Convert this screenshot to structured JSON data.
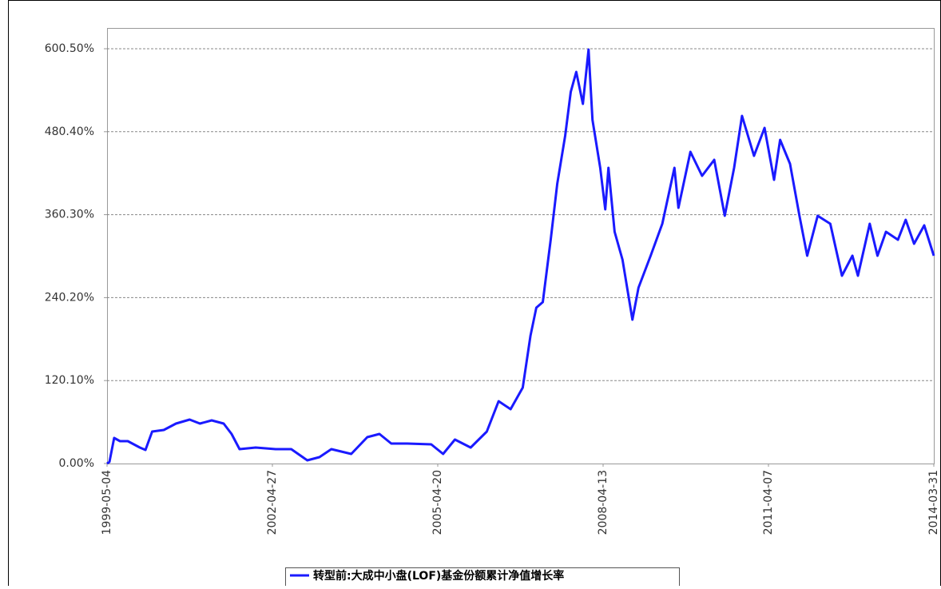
{
  "chart_data": {
    "type": "line",
    "x": [
      "1999-05-04",
      "1999-05-20",
      "1999-06-20",
      "1999-07-28",
      "1999-09-18",
      "1999-12-06",
      "2000-01-12",
      "2000-02-25",
      "2000-05-12",
      "2000-07-31",
      "2000-10-29",
      "2001-01-05",
      "2001-03-23",
      "2001-06-10",
      "2001-08-01",
      "2001-09-23",
      "2002-01-07",
      "2002-05-18",
      "2002-08-29",
      "2002-12-13",
      "2003-03-03",
      "2003-05-20",
      "2003-09-28",
      "2004-01-12",
      "2004-04-01",
      "2004-06-18",
      "2004-10-01",
      "2005-03-08",
      "2005-05-25",
      "2005-08-11",
      "2005-11-23",
      "2006-03-09",
      "2006-05-26",
      "2006-08-13",
      "2006-11-01",
      "2006-12-22",
      "2007-01-29",
      "2007-03-13",
      "2007-05-04",
      "2007-06-16",
      "2007-08-07",
      "2007-09-13",
      "2007-10-19",
      "2007-12-02",
      "2008-01-08",
      "2008-02-03",
      "2008-03-25",
      "2008-04-27",
      "2008-05-18",
      "2008-06-28",
      "2008-08-19",
      "2008-10-23",
      "2008-12-02",
      "2009-02-20",
      "2009-05-08",
      "2009-07-27",
      "2009-08-22",
      "2009-11-09",
      "2010-01-25",
      "2010-04-15",
      "2010-06-23",
      "2010-08-24",
      "2010-10-15",
      "2011-01-02",
      "2011-03-12",
      "2011-05-14",
      "2011-06-23",
      "2011-08-27",
      "2011-10-28",
      "2011-12-18",
      "2012-02-25",
      "2012-05-18",
      "2012-08-03",
      "2012-10-11",
      "2012-11-16",
      "2013-02-02",
      "2013-03-25",
      "2013-05-20",
      "2013-08-07",
      "2013-09-27",
      "2013-11-21",
      "2014-01-27",
      "2014-03-31"
    ],
    "series": [
      {
        "name": "转型前:大成中小盘(LOF)基金份额累计净值增长率",
        "color": "#1a1aff",
        "values": [
          0,
          2.3,
          37,
          32.4,
          32.4,
          23.1,
          19.7,
          46.3,
          48.6,
          57.9,
          63.6,
          57.9,
          62.5,
          57.9,
          42.8,
          20.8,
          23.1,
          20.8,
          20.8,
          4.6,
          9.3,
          20.8,
          13.9,
          38.2,
          42.8,
          28.9,
          28.9,
          27.8,
          13.9,
          34.7,
          23.1,
          46.3,
          90.2,
          78.7,
          109.9,
          185.1,
          225.6,
          233.7,
          324,
          405,
          474.4,
          538,
          566.9,
          520.7,
          599.3,
          497.5,
          428.1,
          367.9,
          428.1,
          335.5,
          295,
          208.3,
          254.5,
          300.8,
          347.1,
          428.1,
          370.2,
          451.2,
          416.5,
          439.7,
          358.7,
          428.1,
          503.3,
          445.5,
          485.9,
          410.7,
          468.6,
          433.9,
          358.7,
          300.8,
          358.7,
          347.1,
          271.9,
          300.8,
          271.9,
          347.1,
          300.8,
          335.5,
          324,
          352.9,
          318.2,
          344.8,
          300.8
        ]
      }
    ],
    "xlim": [
      "1999-05-04",
      "2014-03-31"
    ],
    "xticks": [
      "1999-05-04",
      "2002-04-27",
      "2005-04-20",
      "2008-04-13",
      "2011-04-07",
      "2014-03-31"
    ],
    "ylim": [
      0,
      600.5
    ],
    "yticks": [
      {
        "value": 0,
        "label": "0.00%"
      },
      {
        "value": 120.1,
        "label": "120.10%"
      },
      {
        "value": 240.2,
        "label": "240.20%"
      },
      {
        "value": 360.3,
        "label": "360.30%"
      },
      {
        "value": 480.4,
        "label": "480.40%"
      },
      {
        "value": 600.5,
        "label": "600.50%"
      }
    ],
    "grid": true
  }
}
